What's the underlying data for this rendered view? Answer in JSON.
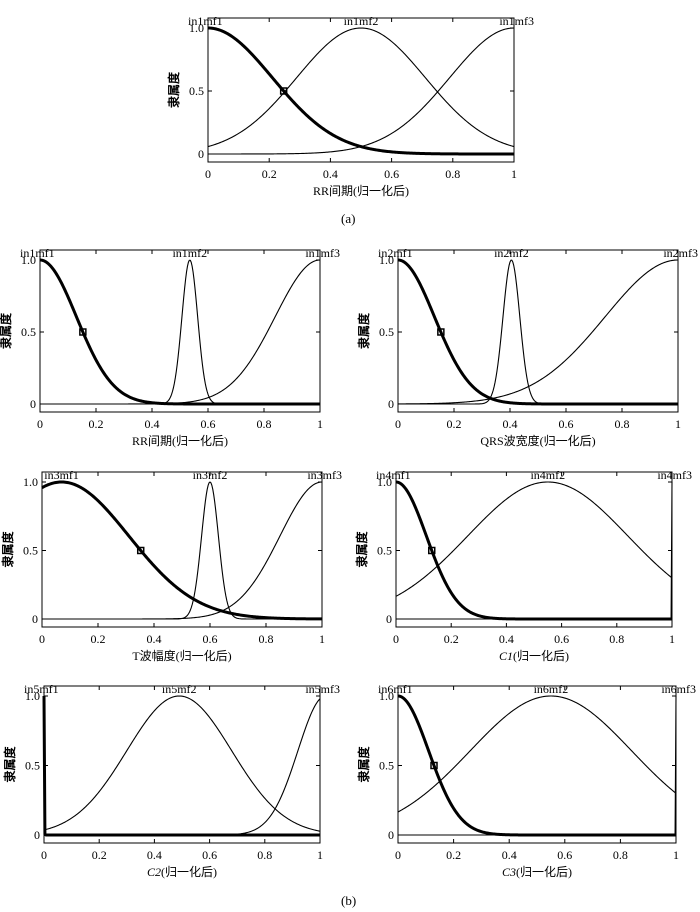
{
  "figure": {
    "caption_a": "(a)",
    "caption_b": "(b)"
  },
  "chart_data": [
    {
      "id": "a",
      "type": "line",
      "xlabel": "RR间期(归一化后)",
      "ylabel": "隶属度",
      "xlim": [
        0,
        1
      ],
      "ylim": [
        0,
        1
      ],
      "xticks": [
        "0",
        "0.2",
        "0.4",
        "0.6",
        "0.8",
        "1"
      ],
      "yticks": [
        "0",
        "0.5",
        "1.0"
      ],
      "series": [
        {
          "name": "in1mf1",
          "shape": "gauss",
          "center": 0.0,
          "sigma": 0.21,
          "bold": true
        },
        {
          "name": "in1mf2",
          "shape": "gauss",
          "center": 0.5,
          "sigma": 0.21,
          "bold": false
        },
        {
          "name": "in1mf3",
          "shape": "gauss",
          "center": 1.0,
          "sigma": 0.21,
          "bold": false
        }
      ]
    },
    {
      "id": "b1",
      "type": "line",
      "xlabel": "RR间期(归一化后)",
      "ylabel": "隶属度",
      "xlim": [
        0,
        1
      ],
      "ylim": [
        0,
        1
      ],
      "xticks": [
        "0",
        "0.2",
        "0.4",
        "0.6",
        "0.8",
        "1"
      ],
      "yticks": [
        "0",
        "0.5",
        "1.0"
      ],
      "series": [
        {
          "name": "in1mf1",
          "shape": "gauss",
          "center": 0.0,
          "sigma": 0.13,
          "bold": true
        },
        {
          "name": "in1mf2",
          "shape": "gauss",
          "center": 0.535,
          "sigma": 0.028,
          "bold": false
        },
        {
          "name": "in1mf3",
          "shape": "gauss",
          "center": 1.0,
          "sigma": 0.16,
          "bold": false
        }
      ]
    },
    {
      "id": "b2",
      "type": "line",
      "xlabel": "QRS波宽度(归一化后)",
      "ylabel": "隶属度",
      "xlim": [
        0,
        1
      ],
      "ylim": [
        0,
        1
      ],
      "xticks": [
        "0",
        "0.2",
        "0.4",
        "0.6",
        "0.8",
        "1"
      ],
      "yticks": [
        "0",
        "0.5",
        "1.0"
      ],
      "series": [
        {
          "name": "in2mf1",
          "shape": "gauss",
          "center": 0.0,
          "sigma": 0.13,
          "bold": true
        },
        {
          "name": "in2mf2",
          "shape": "gauss",
          "center": 0.405,
          "sigma": 0.03,
          "bold": false
        },
        {
          "name": "in2mf3",
          "shape": "gauss",
          "center": 1.0,
          "sigma": 0.26,
          "bold": false
        }
      ]
    },
    {
      "id": "b3",
      "type": "line",
      "xlabel": "T波幅度(归一化后)",
      "ylabel": "隶属度",
      "xlim": [
        0,
        1
      ],
      "ylim": [
        0,
        1
      ],
      "xticks": [
        "0",
        "0.2",
        "0.4",
        "0.6",
        "0.8",
        "1"
      ],
      "yticks": [
        "0",
        "0.5",
        "1.0"
      ],
      "series": [
        {
          "name": "in3mf1",
          "shape": "gauss",
          "center": 0.07,
          "sigma": 0.24,
          "bold": true
        },
        {
          "name": "in3mf2",
          "shape": "gauss",
          "center": 0.6,
          "sigma": 0.03,
          "bold": false
        },
        {
          "name": "in3mf3",
          "shape": "gauss",
          "center": 1.0,
          "sigma": 0.15,
          "bold": false
        }
      ]
    },
    {
      "id": "b4",
      "type": "line",
      "xlabel": "C1(归一化后)",
      "ylabel": "隶属度",
      "xlim": [
        0,
        1
      ],
      "ylim": [
        0,
        1
      ],
      "xticks": [
        "0",
        "0.2",
        "0.4",
        "0.6",
        "0.8",
        "1"
      ],
      "yticks": [
        "0",
        "0.5",
        "1.0"
      ],
      "series": [
        {
          "name": "in4mf1",
          "shape": "gauss",
          "center": 0.0,
          "sigma": 0.11,
          "bold": true
        },
        {
          "name": "in4mf2",
          "shape": "gauss",
          "center": 0.55,
          "sigma": 0.29,
          "bold": false
        },
        {
          "name": "in4mf3",
          "shape": "gauss",
          "center": 1.0,
          "sigma": 0.001,
          "bold": false
        }
      ]
    },
    {
      "id": "b5",
      "type": "line",
      "xlabel": "C2(归一化后)",
      "ylabel": "隶属度",
      "xlim": [
        0,
        1
      ],
      "ylim": [
        0,
        1
      ],
      "xticks": [
        "0",
        "0.2",
        "0.4",
        "0.6",
        "0.8",
        "1"
      ],
      "yticks": [
        "0",
        "0.5",
        "1.0"
      ],
      "series": [
        {
          "name": "in5mf1",
          "shape": "gauss",
          "center": 0.0,
          "sigma": 0.001,
          "bold": true
        },
        {
          "name": "in5mf2",
          "shape": "gauss",
          "center": 0.49,
          "sigma": 0.19,
          "bold": false
        },
        {
          "name": "in5mf3",
          "shape": "gauss",
          "center": 1.02,
          "sigma": 0.1,
          "bold": false
        }
      ]
    },
    {
      "id": "b6",
      "type": "line",
      "xlabel": "C3(归一化后)",
      "ylabel": "隶属度",
      "xlim": [
        0,
        1
      ],
      "ylim": [
        0,
        1
      ],
      "xticks": [
        "0",
        "0.2",
        "0.4",
        "0.6",
        "0.8",
        "1"
      ],
      "yticks": [
        "0",
        "0.5",
        "1.0"
      ],
      "series": [
        {
          "name": "in6mf1",
          "shape": "gauss",
          "center": 0.0,
          "sigma": 0.11,
          "bold": true
        },
        {
          "name": "in6mf2",
          "shape": "gauss",
          "center": 0.55,
          "sigma": 0.29,
          "bold": false
        },
        {
          "name": "in6mf3",
          "shape": "gauss",
          "center": 1.0,
          "sigma": 0.001,
          "bold": false
        }
      ]
    }
  ]
}
